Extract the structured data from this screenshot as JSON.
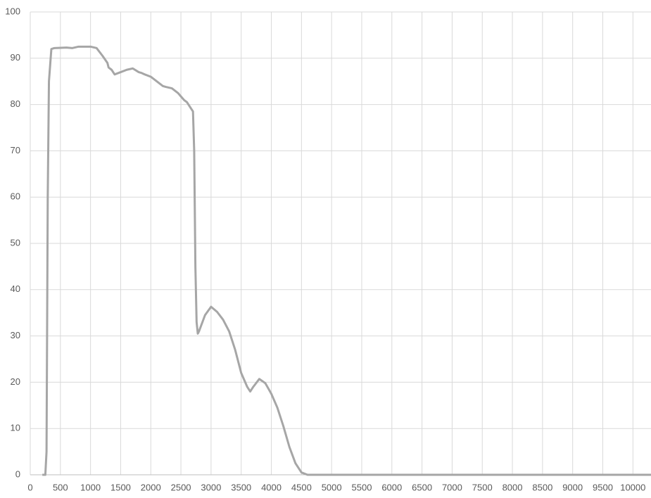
{
  "chart_data": {
    "type": "line",
    "x": [
      200,
      250,
      270,
      290,
      310,
      350,
      400,
      600,
      700,
      800,
      1000,
      1100,
      1200,
      1280,
      1300,
      1350,
      1400,
      1500,
      1600,
      1700,
      1800,
      1850,
      1900,
      2000,
      2100,
      2200,
      2250,
      2350,
      2450,
      2550,
      2600,
      2650,
      2700,
      2720,
      2740,
      2760,
      2780,
      2800,
      2900,
      3000,
      3100,
      3200,
      3300,
      3400,
      3500,
      3600,
      3650,
      3700,
      3800,
      3900,
      4000,
      4100,
      4200,
      4300,
      4400,
      4500,
      4600,
      5000,
      10300
    ],
    "series": [
      {
        "color": "#a6a6a6",
        "values": [
          0,
          0,
          5,
          60,
          85,
          92,
          92.2,
          92.3,
          92.2,
          92.5,
          92.5,
          92.2,
          90.5,
          89,
          88,
          87.5,
          86.5,
          87,
          87.5,
          87.8,
          87,
          86.8,
          86.5,
          86,
          85,
          84,
          83.8,
          83.5,
          82.5,
          81,
          80.5,
          79.5,
          78.5,
          70,
          45,
          33,
          30.5,
          31,
          34.5,
          36.3,
          35.2,
          33.5,
          31,
          27,
          22,
          19,
          18,
          19,
          20.7,
          19.8,
          17.5,
          14.5,
          10.5,
          6,
          2.5,
          0.5,
          0,
          0,
          0
        ]
      }
    ],
    "xlim": [
      0,
      10300
    ],
    "ylim": [
      0,
      100
    ],
    "xticks": [
      0,
      500,
      1000,
      1500,
      2000,
      2500,
      3000,
      3500,
      4000,
      4500,
      5000,
      5500,
      6000,
      6500,
      7000,
      7500,
      8000,
      8500,
      9000,
      9500,
      10000
    ],
    "yticks": [
      0,
      10,
      20,
      30,
      40,
      50,
      60,
      70,
      80,
      90,
      100
    ],
    "grid": true
  }
}
